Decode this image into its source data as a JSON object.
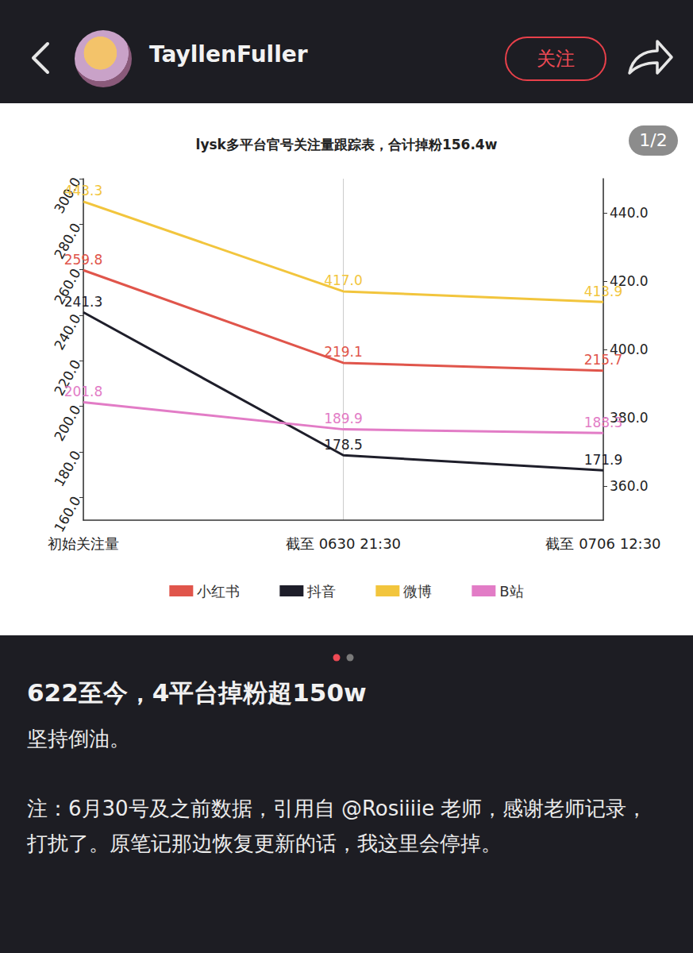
{
  "header": {
    "username": "TayllenFuller",
    "follow_button": "关注"
  },
  "page_indicator": "1/2",
  "chart_data": {
    "type": "line",
    "title": "lysk多平台官号关注量跟踪表，合计掉粉156.4w",
    "categories": [
      "初始关注量",
      "截至 0630 21:30",
      "截至 0706 12:30"
    ],
    "series": [
      {
        "name": "小红书",
        "color": "#e0554b",
        "values": [
          259.8,
          219.1,
          215.7
        ],
        "value_labels": [
          "259.8",
          "219.1",
          "215.7"
        ]
      },
      {
        "name": "抖音",
        "color": "#1e1e2a",
        "values": [
          241.3,
          178.5,
          171.9
        ],
        "value_labels": [
          "241.3",
          "178.5",
          "171.9"
        ]
      },
      {
        "name": "微博",
        "color": "#f2c53d",
        "values": [
          443.3,
          417.0,
          413.9
        ],
        "value_labels": [
          "443.3",
          "417.0",
          "413.9"
        ],
        "axis": "y2"
      },
      {
        "name": "B站",
        "color": "#e27cc6",
        "values": [
          201.8,
          189.9,
          188.3
        ],
        "value_labels": [
          "201.8",
          "189.9",
          "188.3"
        ]
      }
    ],
    "ylim": [
      150,
      300
    ],
    "yticks": [
      {
        "value": 160,
        "label": "160.0"
      },
      {
        "value": 180,
        "label": "180.0"
      },
      {
        "value": 200,
        "label": "200.0"
      },
      {
        "value": 220,
        "label": "220.0"
      },
      {
        "value": 240,
        "label": "240.0"
      },
      {
        "value": 260,
        "label": "260.0"
      },
      {
        "value": 280,
        "label": "280.0"
      },
      {
        "value": 300,
        "label": "300.0"
      }
    ],
    "y2lim": [
      350,
      450
    ],
    "y2ticks": [
      {
        "value": 360,
        "label": "360.0"
      },
      {
        "value": 380,
        "label": "380.0"
      },
      {
        "value": 400,
        "label": "400.0"
      },
      {
        "value": 420,
        "label": "420.0"
      },
      {
        "value": 440,
        "label": "440.0"
      }
    ],
    "grid": true,
    "legend": "bottom",
    "data_labels": true
  },
  "post": {
    "title": "622至今，4平台掉粉超150w",
    "paragraphs": [
      "坚持倒油。",
      "注：6月30号及之前数据，引用自 @Rosiiiie 老师，感谢老师记录，打扰了。原笔记那边恢复更新的话，我这里会停掉。"
    ]
  }
}
